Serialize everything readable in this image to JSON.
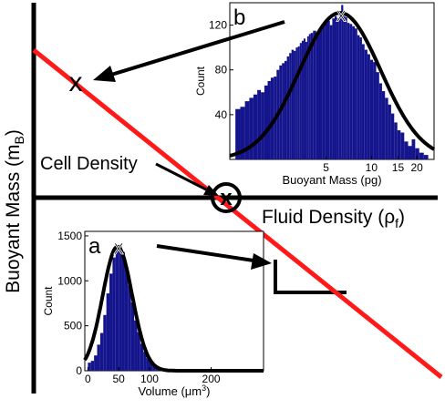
{
  "axes": {
    "ylabel_main": "Buoyant Mass (m",
    "ylabel_sub": "B",
    "ylabel_close": ")",
    "xlabel_main": "Fluid Density (ρ",
    "xlabel_sub": "f",
    "xlabel_close": ")"
  },
  "annotation": {
    "cell_density": "Cell Density",
    "marker": "x"
  },
  "colors": {
    "line": "#ff1a1a",
    "bars": "#14148c",
    "curve": "#000000"
  },
  "chart_data": [
    {
      "type": "bar",
      "panel_label": "b",
      "xlabel": "Buoyant Mass (pg)",
      "ylabel": "Count",
      "x_scale": "log",
      "xlim": [
        1.15,
        26
      ],
      "ylim": [
        0,
        140
      ],
      "xticks": [
        5,
        10,
        15,
        20
      ],
      "yticks": [
        40,
        80,
        120
      ],
      "marker_x": 6.3,
      "marker_y": 130,
      "curve": {
        "type": "lognormal",
        "peak_x": 6.2,
        "peak_y": 131,
        "sigma": 0.62
      },
      "bins": {
        "x": [
          1.3,
          1.4,
          1.5,
          1.6,
          1.7,
          1.8,
          1.9,
          2.0,
          2.1,
          2.2,
          2.3,
          2.4,
          2.5,
          2.6,
          2.7,
          2.8,
          2.9,
          3.0,
          3.1,
          3.2,
          3.3,
          3.4,
          3.5,
          3.6,
          3.7,
          3.8,
          3.9,
          4.0,
          4.2,
          4.4,
          4.6,
          4.8,
          5.0,
          5.2,
          5.4,
          5.6,
          5.8,
          6.0,
          6.2,
          6.4,
          6.6,
          6.8,
          7.0,
          7.3,
          7.6,
          7.9,
          8.2,
          8.5,
          8.8,
          9.2,
          9.6,
          10.0,
          10.5,
          11.0,
          11.5,
          12.0,
          12.6,
          13.2,
          13.8,
          14.5,
          15.2,
          16.0,
          17.0,
          18.0,
          19.0,
          20.0,
          21.5,
          23.0
        ],
        "values": [
          45,
          47,
          52,
          55,
          58,
          62,
          60,
          66,
          70,
          73,
          74,
          80,
          84,
          86,
          88,
          92,
          95,
          98,
          97,
          100,
          101,
          104,
          106,
          108,
          105,
          110,
          112,
          113,
          115,
          113,
          116,
          119,
          122,
          124,
          120,
          126,
          128,
          126,
          132,
          138,
          128,
          127,
          122,
          121,
          119,
          117,
          111,
          109,
          103,
          98,
          94,
          89,
          87,
          78,
          68,
          61,
          55,
          49,
          41,
          33,
          26,
          24,
          16,
          12,
          18,
          10,
          6,
          4
        ]
      }
    },
    {
      "type": "bar",
      "panel_label": "a",
      "xlabel": "Volume (μm³)",
      "xlabel_main": "Volume (μm",
      "xlabel_sup": "3",
      "xlabel_close": ")",
      "ylabel": "Count",
      "xlim": [
        -5,
        285
      ],
      "ylim": [
        0,
        1550
      ],
      "xticks": [
        0,
        50,
        100,
        200
      ],
      "yticks": [
        0,
        500,
        1000,
        1500
      ],
      "marker_x": 50,
      "marker_y": 1380,
      "curve": {
        "type": "gaussian",
        "mean": 48,
        "peak_y": 1380,
        "sigma": 24
      },
      "bins": {
        "x": [
          2.5,
          7.5,
          12.5,
          17.5,
          22.5,
          27.5,
          32.5,
          37.5,
          42.5,
          47.5,
          52.5,
          57.5,
          62.5,
          67.5,
          72.5,
          77.5,
          82.5,
          87.5,
          92.5,
          97.5,
          102.5,
          107.5,
          112.5,
          117.5,
          122.5,
          127.5,
          132.5,
          137.5,
          142.5
        ],
        "values": [
          90,
          110,
          170,
          290,
          420,
          620,
          860,
          1080,
          1260,
          1370,
          1400,
          1320,
          1150,
          950,
          760,
          560,
          430,
          300,
          210,
          140,
          100,
          70,
          50,
          30,
          20,
          12,
          8,
          5,
          3
        ]
      }
    }
  ]
}
